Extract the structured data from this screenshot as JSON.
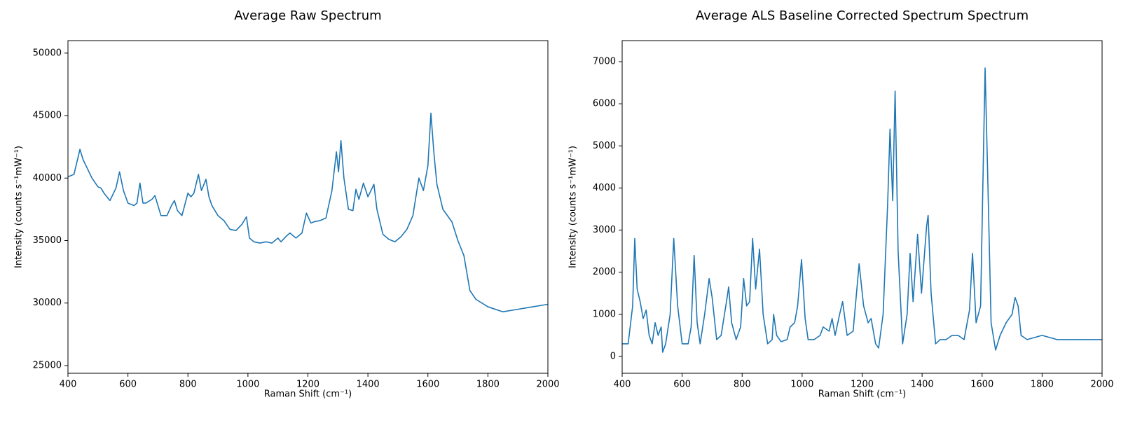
{
  "chart_data": [
    {
      "type": "line",
      "title": "Average Raw Spectrum",
      "xlabel": "Raman Shift (cm⁻¹)",
      "ylabel": "Intensity (counts s⁻¹mW⁻¹)",
      "color": "#1f77b4",
      "x": [
        400,
        420,
        440,
        450,
        460,
        480,
        500,
        510,
        520,
        540,
        560,
        572,
        585,
        600,
        620,
        630,
        640,
        650,
        660,
        680,
        690,
        700,
        710,
        730,
        745,
        755,
        765,
        780,
        800,
        810,
        820,
        835,
        845,
        860,
        870,
        880,
        900,
        920,
        940,
        960,
        980,
        995,
        1005,
        1020,
        1040,
        1060,
        1080,
        1090,
        1100,
        1110,
        1130,
        1140,
        1160,
        1180,
        1195,
        1210,
        1220,
        1240,
        1260,
        1280,
        1295,
        1302,
        1310,
        1320,
        1335,
        1350,
        1360,
        1370,
        1385,
        1400,
        1420,
        1430,
        1450,
        1470,
        1490,
        1510,
        1530,
        1550,
        1570,
        1585,
        1600,
        1610,
        1620,
        1630,
        1650,
        1680,
        1700,
        1720,
        1740,
        1760,
        1800,
        1850,
        1900,
        1950,
        2000
      ],
      "values": [
        40100,
        40300,
        42300,
        41500,
        41000,
        40000,
        39300,
        39200,
        38800,
        38200,
        39200,
        40500,
        39000,
        38000,
        37800,
        38000,
        39600,
        38000,
        38000,
        38300,
        38600,
        37800,
        37000,
        37000,
        37800,
        38200,
        37400,
        37000,
        38800,
        38500,
        38800,
        40300,
        39000,
        39900,
        38500,
        37800,
        37000,
        36600,
        35900,
        35800,
        36300,
        36900,
        35200,
        34900,
        34800,
        34900,
        34800,
        35000,
        35200,
        34900,
        35400,
        35600,
        35200,
        35600,
        37200,
        36400,
        36500,
        36600,
        36800,
        39000,
        42100,
        40500,
        43000,
        40000,
        37500,
        37400,
        39100,
        38300,
        39600,
        38500,
        39500,
        37500,
        35500,
        35100,
        34900,
        35300,
        35900,
        37000,
        40000,
        39000,
        41000,
        45200,
        42000,
        39500,
        37500,
        36500,
        35000,
        33800,
        31000,
        30300,
        29700,
        29300,
        29500,
        29700,
        29900
      ],
      "xlim": [
        400,
        2000
      ],
      "xticks": [
        400,
        600,
        800,
        1000,
        1200,
        1400,
        1600,
        1800,
        2000
      ],
      "ylim": [
        24380,
        51000
      ],
      "yticks": [
        25000,
        30000,
        35000,
        40000,
        45000,
        50000
      ]
    },
    {
      "type": "line",
      "title": "Average ALS Baseline Corrected Spectrum Spectrum",
      "xlabel": "Raman Shift (cm⁻¹)",
      "ylabel": "Intensity (counts s⁻¹mW⁻¹)",
      "color": "#1f77b4",
      "x": [
        400,
        420,
        435,
        442,
        450,
        460,
        470,
        480,
        490,
        500,
        510,
        520,
        530,
        535,
        545,
        560,
        572,
        585,
        600,
        620,
        630,
        640,
        650,
        660,
        675,
        690,
        700,
        715,
        730,
        750,
        755,
        765,
        780,
        795,
        805,
        815,
        825,
        835,
        845,
        858,
        870,
        885,
        900,
        905,
        915,
        930,
        950,
        960,
        975,
        985,
        998,
        1010,
        1020,
        1040,
        1060,
        1070,
        1090,
        1100,
        1110,
        1125,
        1135,
        1150,
        1170,
        1190,
        1205,
        1220,
        1230,
        1245,
        1255,
        1270,
        1285,
        1293,
        1302,
        1310,
        1320,
        1335,
        1350,
        1360,
        1370,
        1385,
        1398,
        1415,
        1420,
        1430,
        1445,
        1460,
        1480,
        1500,
        1520,
        1540,
        1558,
        1568,
        1580,
        1595,
        1605,
        1610,
        1618,
        1630,
        1645,
        1660,
        1680,
        1700,
        1710,
        1720,
        1730,
        1750,
        1800,
        1850,
        1900,
        1950,
        2000
      ],
      "values": [
        300,
        300,
        1200,
        2800,
        1600,
        1300,
        900,
        1100,
        500,
        300,
        800,
        500,
        700,
        100,
        300,
        1000,
        2800,
        1200,
        300,
        300,
        700,
        2400,
        800,
        300,
        1000,
        1850,
        1400,
        400,
        500,
        1400,
        1650,
        800,
        400,
        700,
        1850,
        1200,
        1300,
        2800,
        1600,
        2550,
        1000,
        300,
        400,
        1000,
        500,
        350,
        400,
        700,
        800,
        1200,
        2300,
        900,
        400,
        400,
        500,
        700,
        600,
        900,
        500,
        1000,
        1300,
        500,
        600,
        2200,
        1200,
        800,
        900,
        300,
        200,
        1000,
        3600,
        5400,
        3700,
        6300,
        2500,
        300,
        1000,
        2450,
        1300,
        2900,
        1500,
        3100,
        3350,
        1500,
        300,
        400,
        400,
        500,
        500,
        400,
        1100,
        2450,
        800,
        1200,
        5000,
        6850,
        4500,
        800,
        150,
        500,
        800,
        1000,
        1400,
        1200,
        500,
        400,
        500,
        400,
        400,
        400,
        400
      ],
      "xlim": [
        400,
        2000
      ],
      "xticks": [
        400,
        600,
        800,
        1000,
        1200,
        1400,
        1600,
        1800,
        2000
      ],
      "ylim": [
        -400,
        7500
      ],
      "yticks": [
        0,
        1000,
        2000,
        3000,
        4000,
        5000,
        6000,
        7000
      ]
    }
  ]
}
